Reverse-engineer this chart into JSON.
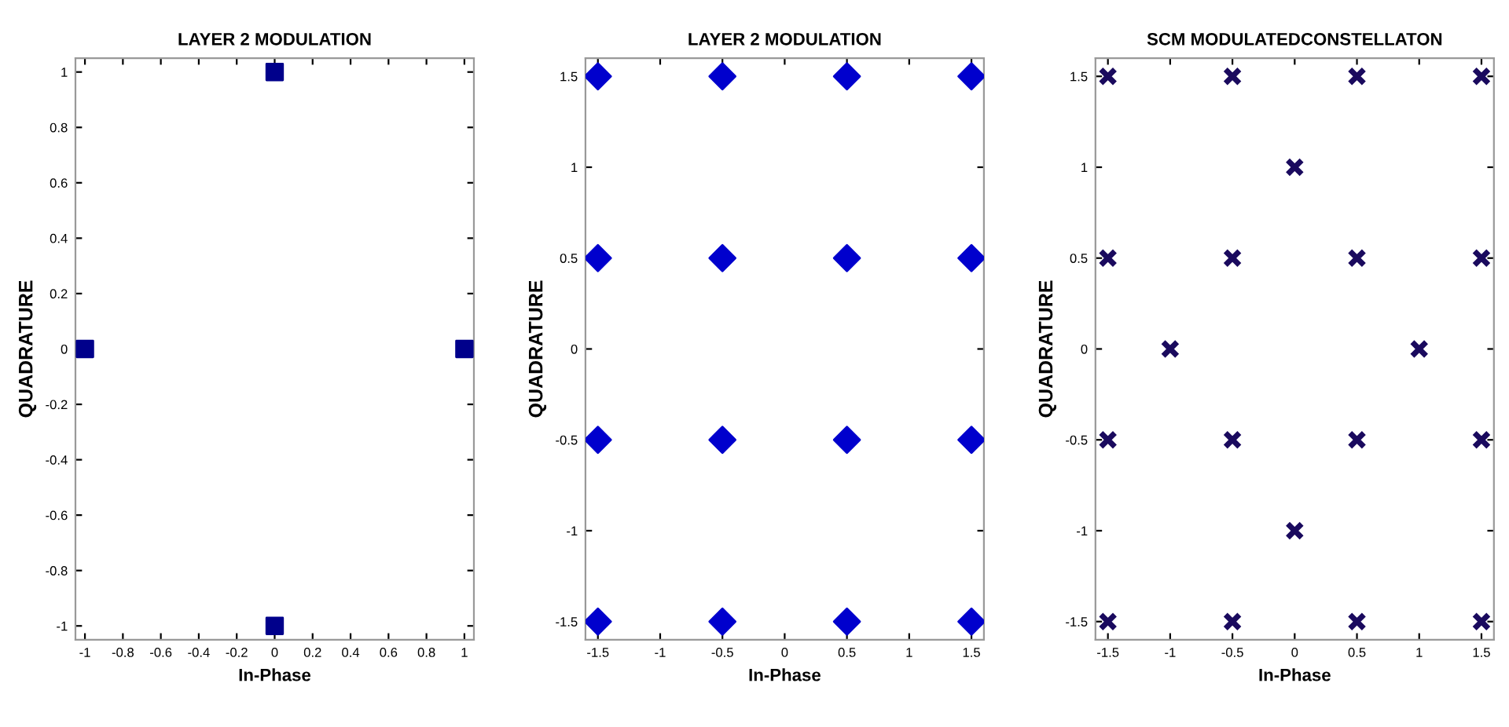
{
  "chart_data": [
    {
      "type": "scatter",
      "title": "LAYER 2 MODULATION",
      "xlabel": "In-Phase",
      "ylabel": "QUADRATURE",
      "marker": "square",
      "grid": false,
      "xlim": [
        -1.05,
        1.05
      ],
      "ylim": [
        -1.05,
        1.05
      ],
      "xticks": [
        -1,
        -0.8,
        -0.6,
        -0.4,
        -0.2,
        0,
        0.2,
        0.4,
        0.6,
        0.8,
        1
      ],
      "yticks": [
        -1,
        -0.8,
        -0.6,
        -0.4,
        -0.2,
        0,
        0.2,
        0.4,
        0.6,
        0.8,
        1
      ],
      "series": [
        {
          "color": "#00008b",
          "x": [
            0,
            -1,
            1,
            0
          ],
          "values": [
            1,
            0,
            0,
            -1
          ]
        }
      ]
    },
    {
      "type": "scatter",
      "title": "LAYER 2 MODULATION",
      "xlabel": "In-Phase",
      "ylabel": "QUADRATURE",
      "marker": "diamond",
      "grid": false,
      "xlim": [
        -1.6,
        1.6
      ],
      "ylim": [
        -1.6,
        1.6
      ],
      "xticks": [
        -1.5,
        -1,
        -0.5,
        0,
        0.5,
        1,
        1.5
      ],
      "yticks": [
        -1.5,
        -1,
        -0.5,
        0,
        0.5,
        1,
        1.5
      ],
      "series": [
        {
          "color": "#0000cd",
          "x": [
            -1.5,
            -0.5,
            0.5,
            1.5,
            -1.5,
            -0.5,
            0.5,
            1.5,
            -1.5,
            -0.5,
            0.5,
            1.5,
            -1.5,
            -0.5,
            0.5,
            1.5
          ],
          "values": [
            1.5,
            1.5,
            1.5,
            1.5,
            0.5,
            0.5,
            0.5,
            0.5,
            -0.5,
            -0.5,
            -0.5,
            -0.5,
            -1.5,
            -1.5,
            -1.5,
            -1.5
          ]
        }
      ]
    },
    {
      "type": "scatter",
      "title": "SCM MODULATEDCONSTELLATON",
      "xlabel": "In-Phase",
      "ylabel": "QUADRATURE",
      "marker": "cross",
      "grid": false,
      "xlim": [
        -1.6,
        1.6
      ],
      "ylim": [
        -1.6,
        1.6
      ],
      "xticks": [
        -1.5,
        -1,
        -0.5,
        0,
        0.5,
        1,
        1.5
      ],
      "yticks": [
        -1.5,
        -1,
        -0.5,
        0,
        0.5,
        1,
        1.5
      ],
      "series": [
        {
          "color": "#1a0a5e",
          "x": [
            -1.5,
            -0.5,
            0.5,
            1.5,
            0,
            -1,
            1,
            -1.5,
            -0.5,
            0.5,
            1.5,
            0,
            -1.5,
            -0.5,
            0.5,
            1.5,
            -1.5,
            -0.5,
            0.5,
            1.5
          ],
          "values": [
            1.5,
            1.5,
            1.5,
            1.5,
            1,
            0,
            0,
            0.5,
            0.5,
            0.5,
            0.5,
            -1,
            -0.5,
            -0.5,
            -0.5,
            -0.5,
            -1.5,
            -1.5,
            -1.5,
            -1.5
          ]
        }
      ]
    }
  ]
}
